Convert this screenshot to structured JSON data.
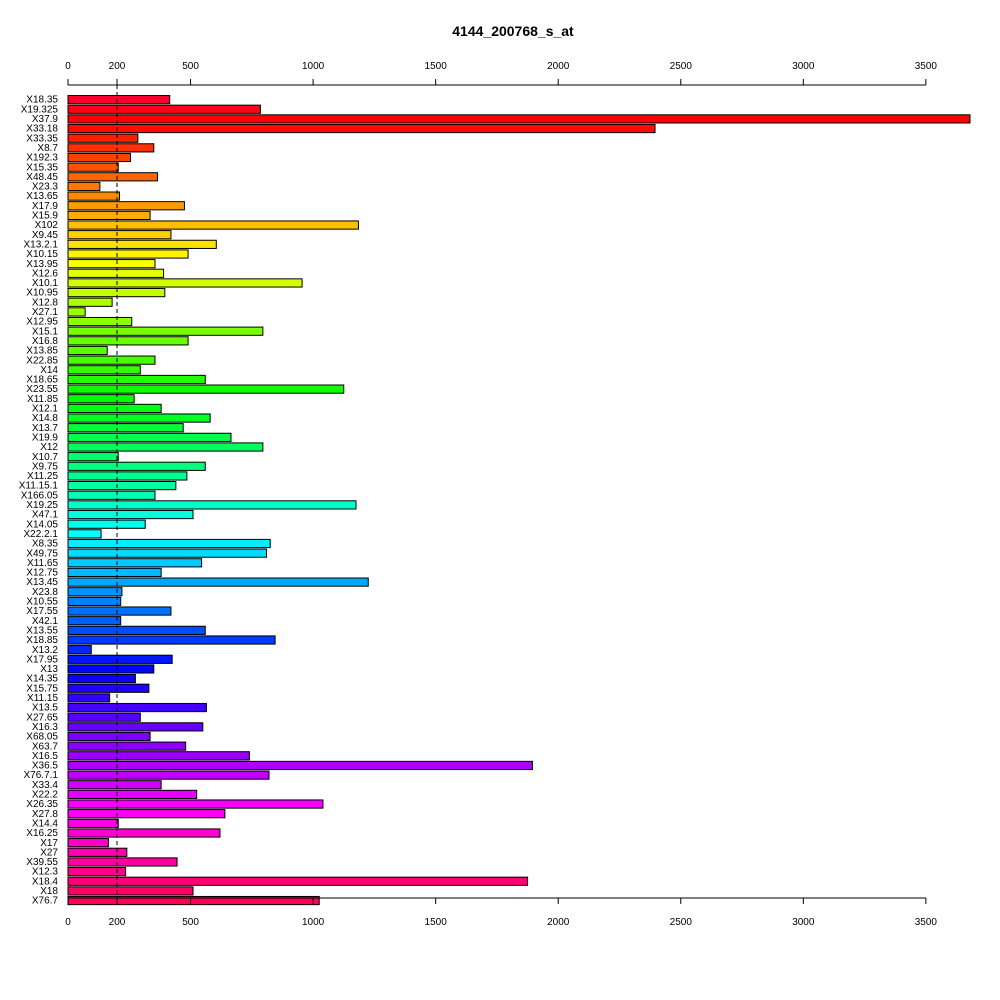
{
  "chart_data": {
    "type": "bar",
    "orientation": "horizontal",
    "title": "4144_200768_s_at",
    "xlabel": "",
    "ylabel": "",
    "xlim": [
      0,
      3680
    ],
    "xticks": [
      0,
      200,
      500,
      1000,
      1500,
      2000,
      2500,
      3000,
      3500
    ],
    "axes": [
      "top",
      "bottom"
    ],
    "reference_line": {
      "value": 200,
      "style": "dashed"
    },
    "grid": false,
    "color_scheme": "rainbow",
    "categories": [
      "X18.35",
      "X19.325",
      "X37.9",
      "X33.18",
      "X33.35",
      "X8.7",
      "X192.3",
      "X15.35",
      "X48.45",
      "X23.3",
      "X13.65",
      "X17.9",
      "X15.9",
      "X102",
      "X9.45",
      "X13.2.1",
      "X10.15",
      "X13.95",
      "X12.6",
      "X10.1",
      "X10.95",
      "X12.8",
      "X27.1",
      "X12.95",
      "X15.1",
      "X16.8",
      "X13.85",
      "X22.85",
      "X14",
      "X18.65",
      "X23.55",
      "X11.85",
      "X12.1",
      "X14.8",
      "X13.7",
      "X19.9",
      "X12",
      "X10.7",
      "X9.75",
      "X11.25",
      "X11.15.1",
      "X166.05",
      "X19.25",
      "X47.1",
      "X14.05",
      "X22.2.1",
      "X8.35",
      "X49.75",
      "X11.65",
      "X12.75",
      "X13.45",
      "X23.8",
      "X10.55",
      "X17.55",
      "X42.1",
      "X13.55",
      "X18.85",
      "X13.2",
      "X17.95",
      "X13",
      "X14.35",
      "X15.75",
      "X11.15",
      "X13.5",
      "X27.65",
      "X16.3",
      "X68.05",
      "X63.7",
      "X16.5",
      "X36.5",
      "X76.7.1",
      "X33.4",
      "X22.2",
      "X26.35",
      "X27.8",
      "X14.4",
      "X16.25",
      "X17",
      "X27",
      "X39.55",
      "X12.3",
      "X18.4",
      "X18",
      "X76.7"
    ],
    "values": [
      415,
      785,
      3680,
      2395,
      285,
      350,
      255,
      205,
      365,
      130,
      210,
      475,
      335,
      1185,
      420,
      605,
      490,
      355,
      390,
      955,
      395,
      180,
      70,
      260,
      795,
      490,
      160,
      355,
      295,
      560,
      1125,
      270,
      380,
      580,
      470,
      665,
      795,
      205,
      560,
      485,
      440,
      355,
      1175,
      510,
      315,
      135,
      825,
      810,
      545,
      380,
      1225,
      220,
      215,
      420,
      215,
      560,
      845,
      95,
      425,
      350,
      275,
      330,
      170,
      565,
      295,
      550,
      335,
      480,
      740,
      1895,
      820,
      380,
      525,
      1040,
      640,
      205,
      620,
      165,
      240,
      445,
      235,
      1875,
      510,
      1025
    ]
  }
}
